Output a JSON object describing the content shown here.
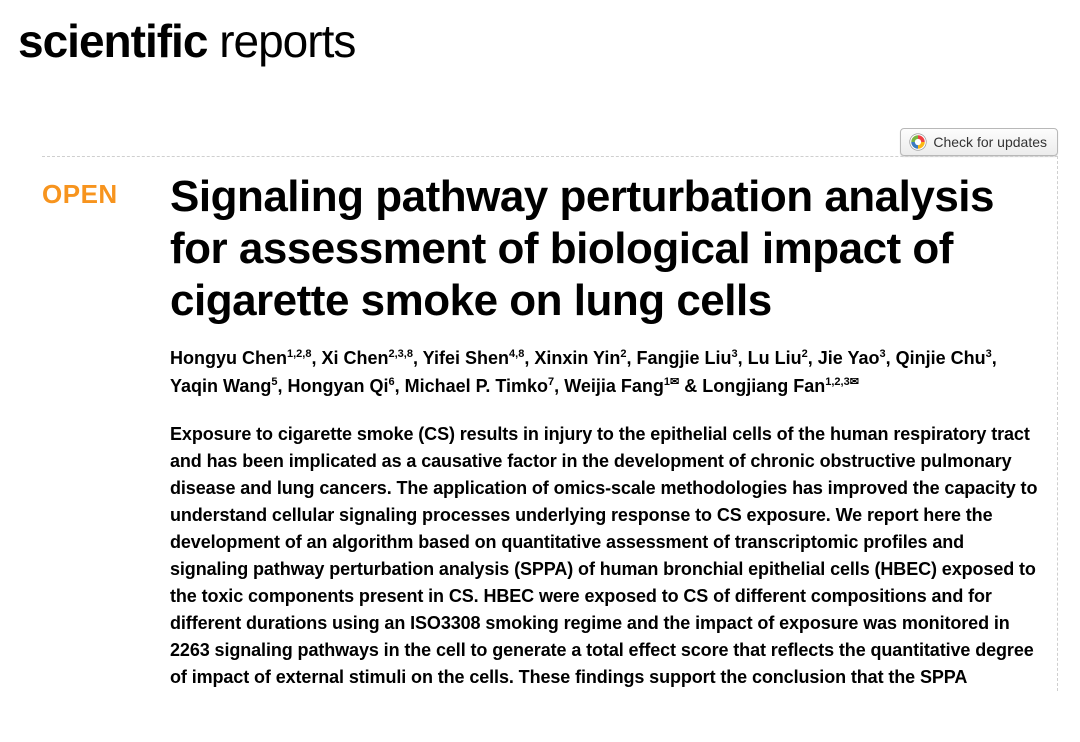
{
  "journal": {
    "bold": "scientific",
    "light": " reports"
  },
  "updates_button": {
    "label": "Check for updates"
  },
  "badge": {
    "open": "OPEN"
  },
  "article": {
    "title": "Signaling pathway perturbation analysis for assessment of biological impact of cigarette smoke on lung cells",
    "abstract": "Exposure to cigarette smoke (CS) results in injury to the epithelial cells of the human respiratory tract and has been implicated as a causative factor in the development of chronic obstructive pulmonary disease and lung cancers. The application of omics-scale methodologies has improved the capacity to understand cellular signaling processes underlying response to CS exposure. We report here the development of an algorithm based on quantitative assessment of transcriptomic profiles and signaling pathway perturbation analysis (SPPA) of human bronchial epithelial cells (HBEC) exposed to the toxic components present in CS. HBEC were exposed to CS of different compositions and for different durations using an ISO3308 smoking regime and the impact of exposure was monitored in 2263 signaling pathways in the cell to generate a total effect score that reflects the quantitative degree of impact of external stimuli on the cells. These findings support the conclusion that the SPPA"
  },
  "authors": [
    {
      "name": "Hongyu Chen",
      "aff": "1,2,8"
    },
    {
      "name": "Xi Chen",
      "aff": "2,3,8"
    },
    {
      "name": "Yifei Shen",
      "aff": "4,8"
    },
    {
      "name": "Xinxin Yin",
      "aff": "2"
    },
    {
      "name": "Fangjie Liu",
      "aff": "3"
    },
    {
      "name": "Lu Liu",
      "aff": "2"
    },
    {
      "name": "Jie Yao",
      "aff": "3"
    },
    {
      "name": "Qinjie Chu",
      "aff": "3"
    },
    {
      "name": "Yaqin Wang",
      "aff": "5"
    },
    {
      "name": "Hongyan Qi",
      "aff": "6"
    },
    {
      "name": "Michael P. Timko",
      "aff": "7"
    },
    {
      "name": "Weijia Fang",
      "aff": "1",
      "mail": true
    },
    {
      "name": "Longjiang Fan",
      "aff": "1,2,3",
      "mail": true
    }
  ],
  "colors": {
    "accent": "#f7941e",
    "border": "#cfcfcf",
    "text": "#000000",
    "button_border": "#b8b8b8"
  }
}
